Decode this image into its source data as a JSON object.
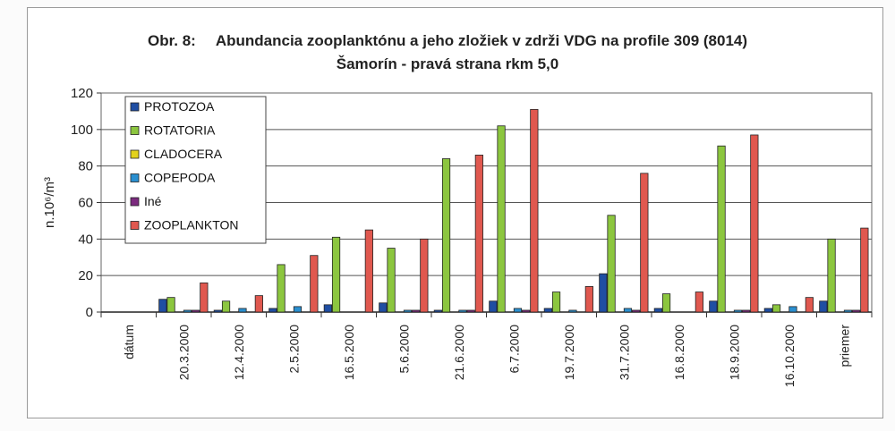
{
  "chart_data": {
    "type": "bar",
    "title_prefix": "Obr. 8:",
    "title": "Abundancia zooplanktónu a jeho zložiek v zdrži VDG na profile 309 (8014)",
    "subtitle": "Šamorín - pravá strana rkm 5,0",
    "ylabel": "n.10⁶/m³",
    "xlabel": "",
    "ylim": [
      0,
      120
    ],
    "yticks": [
      0,
      20,
      40,
      60,
      80,
      100,
      120
    ],
    "grid": true,
    "legend_position": "top-left",
    "categories": [
      "dátum",
      "20.3.2000",
      "12.4.2000",
      "2.5.2000",
      "16.5.2000",
      "5.6.2000",
      "21.6.2000",
      "6.7.2000",
      "19.7.2000",
      "31.7.2000",
      "16.8.2000",
      "18.9.2000",
      "16.10.2000",
      "priemer"
    ],
    "series": [
      {
        "name": "PROTOZOA",
        "color": "#1f4ea3",
        "values": [
          0,
          7,
          1,
          2,
          4,
          5,
          1,
          6,
          2,
          21,
          2,
          6,
          2,
          6
        ]
      },
      {
        "name": "ROTATORIA",
        "color": "#8cc63f",
        "values": [
          0,
          8,
          6,
          26,
          41,
          35,
          84,
          102,
          11,
          53,
          10,
          91,
          4,
          40
        ]
      },
      {
        "name": "CLADOCERA",
        "color": "#e3d21c",
        "values": [
          0,
          0,
          0,
          0,
          0,
          0,
          0,
          0,
          0,
          0,
          0,
          0,
          0,
          0
        ]
      },
      {
        "name": "COPEPODA",
        "color": "#2a8fd0",
        "values": [
          0,
          1,
          2,
          3,
          0,
          1,
          1,
          2,
          1,
          2,
          0,
          1,
          3,
          1
        ]
      },
      {
        "name": "Iné",
        "color": "#7b2a7e",
        "values": [
          0,
          1,
          0,
          0,
          0,
          1,
          1,
          1,
          0,
          1,
          0,
          1,
          0,
          1
        ]
      },
      {
        "name": "ZOOPLANKTON",
        "color": "#e0584f",
        "values": [
          0,
          16,
          9,
          31,
          45,
          40,
          86,
          111,
          14,
          76,
          11,
          97,
          8,
          46
        ]
      }
    ]
  }
}
